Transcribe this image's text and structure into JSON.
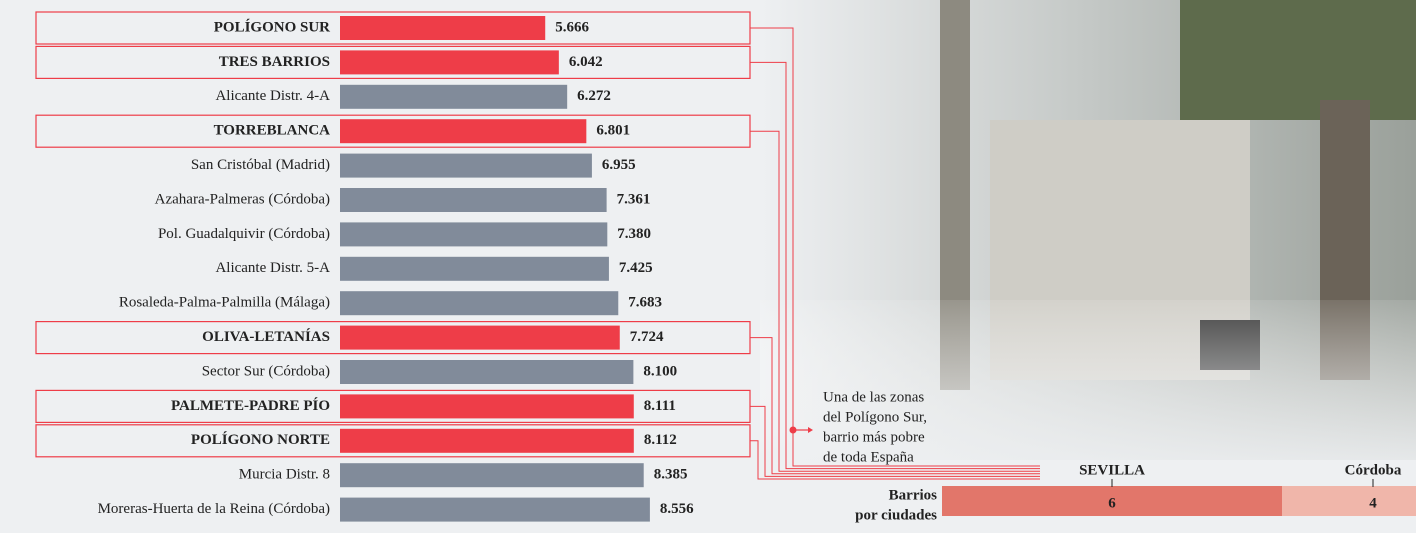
{
  "chart_data": [
    {
      "type": "hbar",
      "categories": [
        "POLÍGONO SUR",
        "TRES BARRIOS",
        "Alicante Distr. 4-A",
        "TORREBLANCA",
        "San Cristóbal (Madrid)",
        "Azahara-Palmeras (Córdoba)",
        "Pol. Guadalquivir (Córdoba)",
        "Alicante Distr. 5-A",
        "Rosaleda-Palma-Palmilla (Málaga)",
        "OLIVA-LETANÍAS",
        "Sector Sur (Córdoba)",
        "PALMETE-PADRE PÍO",
        "POLÍGONO NORTE",
        "Murcia Distr. 8",
        "Moreras-Huerta de la Reina (Córdoba)"
      ],
      "values": [
        5666,
        6042,
        6272,
        6801,
        6955,
        7361,
        7380,
        7425,
        7683,
        7724,
        8100,
        8111,
        8112,
        8385,
        8556
      ],
      "value_labels": [
        "5.666",
        "6.042",
        "6.272",
        "6.801",
        "6.955",
        "7.361",
        "7.380",
        "7.425",
        "7.683",
        "7.724",
        "8.100",
        "8.111",
        "8.112",
        "8.385",
        "8.556"
      ],
      "highlighted": [
        true,
        true,
        false,
        true,
        false,
        false,
        false,
        false,
        false,
        true,
        false,
        true,
        true,
        false,
        false
      ],
      "color": "#818b9a",
      "highlight_color": "#ee3d48",
      "annotation": [
        "Una de las zonas",
        "del Polígono Sur,",
        "barrio más pobre",
        "de toda España"
      ]
    },
    {
      "type": "stacked_hbar",
      "title": [
        "Barrios",
        "por ciudades"
      ],
      "series": [
        {
          "name": "SEVILLA",
          "color": "#e2766a",
          "values": [
            6
          ]
        },
        {
          "name": "Córdoba",
          "color": "#f0b6aa",
          "values": [
            4
          ]
        }
      ]
    }
  ]
}
